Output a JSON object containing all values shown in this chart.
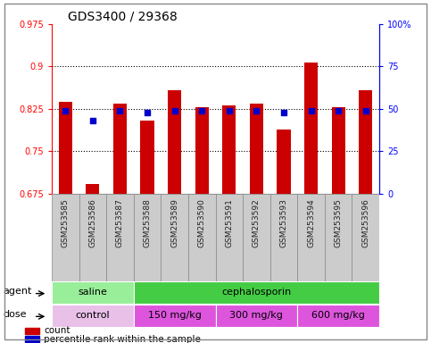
{
  "title": "GDS3400 / 29368",
  "samples": [
    "GSM253585",
    "GSM253586",
    "GSM253587",
    "GSM253588",
    "GSM253589",
    "GSM253590",
    "GSM253591",
    "GSM253592",
    "GSM253593",
    "GSM253594",
    "GSM253595",
    "GSM253596"
  ],
  "count_values": [
    0.838,
    0.692,
    0.835,
    0.805,
    0.858,
    0.828,
    0.831,
    0.835,
    0.788,
    0.907,
    0.828,
    0.858
  ],
  "percentile_values": [
    49,
    43,
    49,
    48,
    49,
    49,
    49,
    49,
    48,
    49,
    49,
    49
  ],
  "ylim_left": [
    0.675,
    0.975
  ],
  "ylim_right": [
    0,
    100
  ],
  "yticks_left": [
    0.675,
    0.75,
    0.825,
    0.9,
    0.975
  ],
  "yticks_right": [
    0,
    25,
    50,
    75,
    100
  ],
  "ytick_labels_left": [
    "0.675",
    "0.75",
    "0.825",
    "0.9",
    "0.975"
  ],
  "ytick_labels_right": [
    "0",
    "25",
    "50",
    "75",
    "100%"
  ],
  "hlines": [
    0.75,
    0.825,
    0.9
  ],
  "bar_color": "#cc0000",
  "dot_color": "#0000cc",
  "bar_bottom": 0.675,
  "agent_groups": [
    {
      "label": "saline",
      "start": 0,
      "end": 3,
      "color": "#99ee99"
    },
    {
      "label": "cephalosporin",
      "start": 3,
      "end": 12,
      "color": "#44cc44"
    }
  ],
  "dose_groups": [
    {
      "label": "control",
      "start": 0,
      "end": 3,
      "color": "#e8c0e8"
    },
    {
      "label": "150 mg/kg",
      "start": 3,
      "end": 6,
      "color": "#dd66dd"
    },
    {
      "label": "300 mg/kg",
      "start": 6,
      "end": 9,
      "color": "#dd66dd"
    },
    {
      "label": "600 mg/kg",
      "start": 9,
      "end": 12,
      "color": "#dd66dd"
    }
  ],
  "agent_label": "agent",
  "dose_label": "dose",
  "title_fontsize": 10,
  "tick_fontsize": 7,
  "bar_width": 0.5,
  "background_color": "#ffffff",
  "xtick_bg_color": "#cccccc",
  "xtick_border_color": "#888888"
}
